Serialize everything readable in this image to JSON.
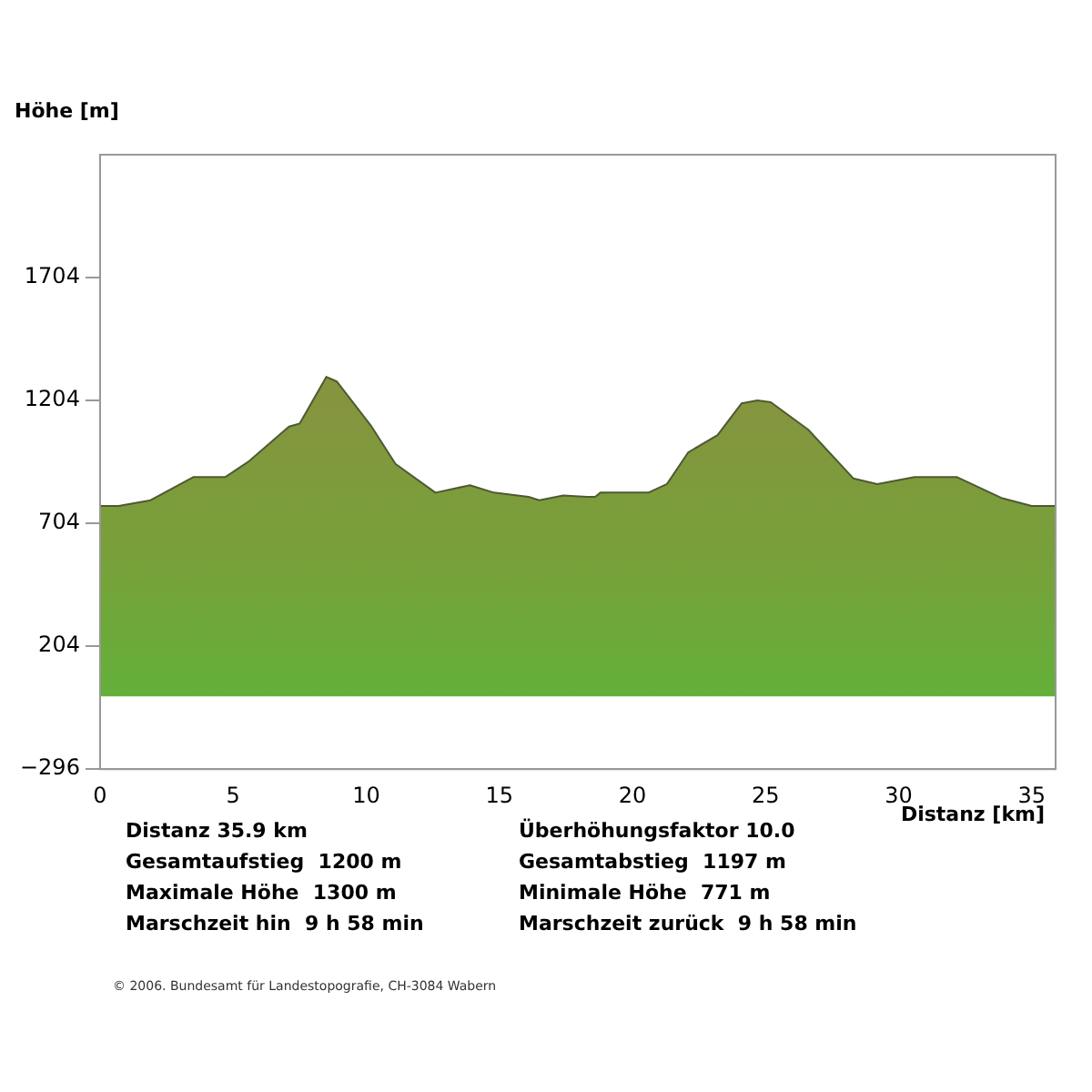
{
  "chart_data": {
    "type": "area",
    "xlabel": "Distanz [km]",
    "ylabel": "Höhe [m]",
    "series": [
      {
        "color": "#78a03a",
        "x": [
          0,
          0.7,
          1.9,
          3.5,
          4.7,
          5.6,
          7.1,
          7.5,
          8.5,
          8.9,
          10.2,
          11.1,
          12.6,
          13.9,
          14.8,
          16.1,
          16.5,
          17.4,
          18.3,
          18.6,
          18.8,
          20.6,
          21.3,
          22.1,
          23.2,
          24.1,
          24.7,
          25.2,
          26.6,
          28.3,
          29.2,
          30.6,
          32.2,
          33.9,
          35.0,
          35.9
        ],
        "values": [
          775,
          775,
          798,
          892,
          892,
          957,
          1098,
          1110,
          1300,
          1281,
          1098,
          946,
          829,
          859,
          829,
          812,
          798,
          817,
          812,
          812,
          829,
          829,
          864,
          993,
          1063,
          1192,
          1204,
          1197,
          1086,
          887,
          864,
          892,
          892,
          806,
          775,
          775
        ]
      }
    ],
    "xlim": [
      0,
      35.9
    ],
    "xticks": [
      0,
      5,
      10,
      15,
      20,
      25,
      30,
      35
    ],
    "ylim": [
      -296,
      2204
    ],
    "yticks": [
      -296,
      204,
      704,
      1204,
      1704
    ],
    "grid": false,
    "legend": false,
    "annotations": [
      "Distanz 35.9 km",
      "Überhöhungsfaktor 10.0",
      "Gesamtaufstieg  1200 m",
      "Gesamtabstieg  1197 m",
      "Maximale Höhe  1300 m",
      "Minimale Höhe  771 m",
      "Marschzeit hin  9 h 58 min",
      "Marschzeit zurück  9 h 58 min",
      "© 2006. Bundesamt für Landestopografie, CH-3084 Wabern"
    ]
  }
}
